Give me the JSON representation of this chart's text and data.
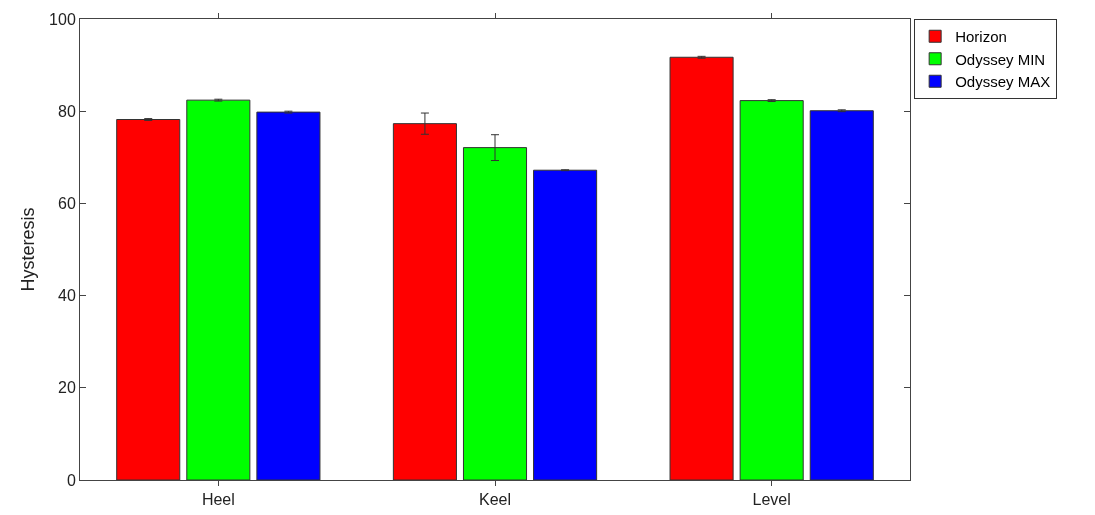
{
  "chart_data": {
    "type": "bar",
    "ylabel": "Hysteresis",
    "categories": [
      "Heel",
      "Keel",
      "Level"
    ],
    "series": [
      {
        "name": "Horizon",
        "color": "#ff0000",
        "values": [
          78.2,
          77.3,
          91.7
        ],
        "errors": [
          0.2,
          2.3,
          0.2
        ]
      },
      {
        "name": "Odyssey MIN",
        "color": "#00ff00",
        "values": [
          82.4,
          72.1,
          82.3
        ],
        "errors": [
          0.2,
          2.8,
          0.2
        ]
      },
      {
        "name": "Odyssey MAX",
        "color": "#0000ff",
        "values": [
          79.8,
          67.2,
          80.1
        ],
        "errors": [
          0.2,
          0.1,
          0.2
        ]
      }
    ],
    "ylim": [
      0,
      100
    ],
    "yticks": [
      0,
      20,
      40,
      60,
      80,
      100
    ],
    "grid": false,
    "legend": "top right"
  }
}
